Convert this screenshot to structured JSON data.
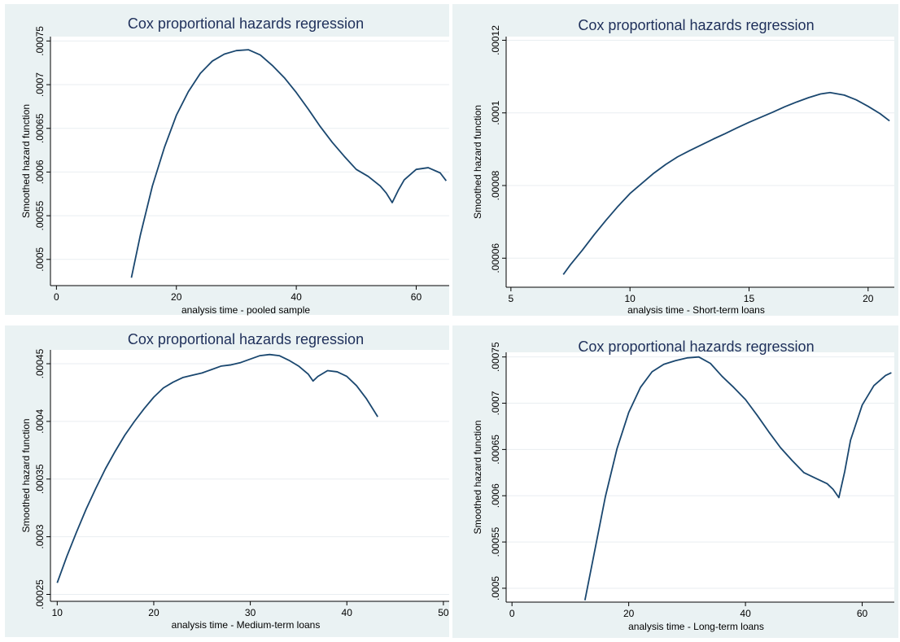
{
  "colors": {
    "panel_bg": "#eaf2f3",
    "plot_bg": "#ffffff",
    "line": "#1a476f",
    "title": "#1e2f5a"
  },
  "chart_data": [
    {
      "type": "line",
      "title": "Cox proportional hazards regression",
      "xlabel": "analysis time - pooled sample",
      "ylabel": "Smoothed hazard function",
      "xlim": [
        -1,
        65.5
      ],
      "ylim": [
        0.00047,
        0.000755
      ],
      "xticks": [
        0,
        20,
        40,
        60
      ],
      "yticks": [
        0.0005,
        0.00055,
        0.0006,
        0.00065,
        0.0007,
        0.00075
      ],
      "ytick_labels": [
        ".0005",
        ".00055",
        ".0006",
        ".00065",
        ".0007",
        ".00075"
      ],
      "grid": true,
      "series": [
        {
          "x": [
            12.5,
            14,
            16,
            18,
            20,
            22,
            24,
            26,
            28,
            30,
            32,
            34,
            36,
            38,
            40,
            42,
            44,
            46,
            48,
            50,
            52,
            54,
            55,
            56,
            57,
            58,
            60,
            62,
            64,
            65
          ],
          "y": [
            0.000479,
            0.000528,
            0.000584,
            0.000628,
            0.000665,
            0.000692,
            0.000713,
            0.000727,
            0.000735,
            0.000739,
            0.00074,
            0.000734,
            0.000722,
            0.000708,
            0.000691,
            0.000672,
            0.000652,
            0.000634,
            0.000618,
            0.000603,
            0.000595,
            0.000584,
            0.000576,
            0.000565,
            0.000579,
            0.000591,
            0.000603,
            0.000605,
            0.000599,
            0.00059
          ]
        }
      ]
    },
    {
      "type": "line",
      "title": "Cox proportional hazards regression",
      "xlabel": "analysis time - Short-term loans",
      "ylabel": "Smoothed hazard function",
      "xlim": [
        4.8,
        21.1
      ],
      "ylim": [
        5.2e-05,
        0.000121
      ],
      "xticks": [
        5,
        10,
        15,
        20
      ],
      "yticks": [
        6e-05,
        8e-05,
        0.0001,
        0.00012
      ],
      "ytick_labels": [
        ".00006",
        ".00008",
        ".0001",
        ".00012"
      ],
      "grid": true,
      "series": [
        {
          "x": [
            7.2,
            7.5,
            8,
            8.5,
            9,
            9.5,
            10,
            10.5,
            11,
            11.5,
            12,
            12.5,
            13,
            13.5,
            14,
            14.5,
            15,
            15.5,
            16,
            16.5,
            17,
            17.5,
            18,
            18.4,
            19,
            19.5,
            20,
            20.5,
            20.9
          ],
          "y": [
            5.55e-05,
            5.82e-05,
            6.22e-05,
            6.65e-05,
            7.05e-05,
            7.43e-05,
            7.78e-05,
            8.06e-05,
            8.34e-05,
            8.58e-05,
            8.79e-05,
            8.96e-05,
            9.12e-05,
            9.28e-05,
            9.43e-05,
            9.59e-05,
            9.74e-05,
            9.88e-05,
            0.0001002,
            0.0001017,
            0.000103,
            0.0001042,
            0.0001052,
            0.0001056,
            0.0001049,
            0.0001036,
            0.0001018,
            9.98e-05,
            9.78e-05
          ]
        }
      ]
    },
    {
      "type": "line",
      "title": "Cox proportional hazards regression",
      "xlabel": "analysis time - Medium-term loans",
      "ylabel": "Smoothed hazard function",
      "xlim": [
        9.3,
        50.6
      ],
      "ylim": [
        0.000244,
        0.000462
      ],
      "xticks": [
        10,
        20,
        30,
        40,
        50
      ],
      "yticks": [
        0.00025,
        0.0003,
        0.00035,
        0.0004,
        0.00045
      ],
      "ytick_labels": [
        ".00025",
        ".0003",
        ".00035",
        ".0004",
        ".00045"
      ],
      "grid": true,
      "series": [
        {
          "x": [
            10,
            11,
            12,
            13,
            14,
            15,
            16,
            17,
            18,
            19,
            20,
            21,
            22,
            23,
            24,
            25,
            26,
            27,
            28,
            29,
            30,
            31,
            32,
            33,
            34,
            35,
            36,
            36.5,
            37,
            38,
            39,
            40,
            41,
            42,
            43.2
          ],
          "y": [
            0.00026,
            0.000283,
            0.000304,
            0.000324,
            0.000342,
            0.000359,
            0.000374,
            0.000388,
            0.0004,
            0.000411,
            0.000421,
            0.000429,
            0.000434,
            0.000438,
            0.00044,
            0.000442,
            0.000445,
            0.000448,
            0.000449,
            0.000451,
            0.000454,
            0.000457,
            0.000458,
            0.000457,
            0.000453,
            0.000448,
            0.000441,
            0.000435,
            0.000439,
            0.000444,
            0.000443,
            0.000439,
            0.000431,
            0.00042,
            0.000404
          ]
        }
      ]
    },
    {
      "type": "line",
      "title": "Cox proportional hazards regression",
      "xlabel": "analysis time - Long-term loans",
      "ylabel": "Smoothed hazard function",
      "xlim": [
        -1,
        65.5
      ],
      "ylim": [
        0.000485,
        0.000755
      ],
      "xticks": [
        0,
        20,
        40,
        60
      ],
      "yticks": [
        0.0005,
        0.00055,
        0.0006,
        0.00065,
        0.0007,
        0.00075
      ],
      "ytick_labels": [
        ".0005",
        ".00055",
        ".0006",
        ".00065",
        ".0007",
        ".00075"
      ],
      "grid": true,
      "series": [
        {
          "x": [
            12.5,
            14,
            16,
            18,
            20,
            22,
            24,
            26,
            28,
            30,
            32,
            34,
            36,
            38,
            40,
            42,
            44,
            46,
            48,
            50,
            52,
            54,
            55,
            56,
            57,
            58,
            60,
            62,
            64,
            65
          ],
          "y": [
            0.000487,
            0.000535,
            0.000599,
            0.000651,
            0.00069,
            0.000717,
            0.000734,
            0.000742,
            0.000746,
            0.000749,
            0.00075,
            0.000743,
            0.000729,
            0.000717,
            0.000704,
            0.000687,
            0.000669,
            0.000652,
            0.000638,
            0.000625,
            0.000619,
            0.000613,
            0.000607,
            0.000598,
            0.000626,
            0.00066,
            0.000698,
            0.000719,
            0.00073,
            0.000733
          ]
        }
      ]
    }
  ]
}
